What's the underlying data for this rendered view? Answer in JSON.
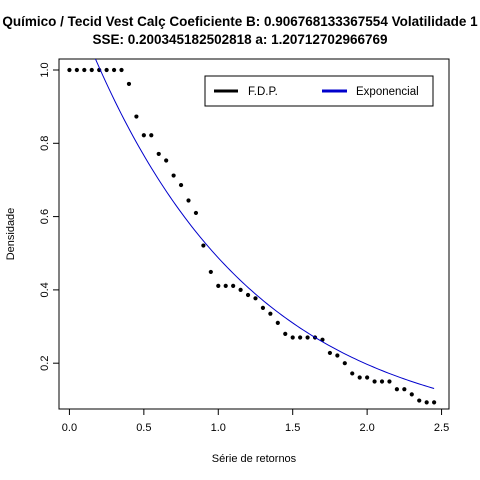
{
  "chart_data": {
    "type": "scatter",
    "title_line1": "Químico / Tecid Vest Calç Coeficiente B:  0.906768133367554 Volatilidade 1",
    "title_line2": "SSE: 0.200345182502818  a:  1.20712702966769",
    "xlabel": "Série de retornos",
    "ylabel": "Densidade",
    "xlim": [
      -0.07,
      2.55
    ],
    "ylim": [
      0.075,
      1.03
    ],
    "xticks": [
      0.0,
      0.5,
      1.0,
      1.5,
      2.0,
      2.5
    ],
    "xtick_labels": [
      "0.0",
      "0.5",
      "1.0",
      "1.5",
      "2.0",
      "2.5"
    ],
    "yticks": [
      0.2,
      0.4,
      0.6,
      0.8,
      1.0
    ],
    "ytick_labels": [
      "0.2",
      "0.4",
      "0.6",
      "0.8",
      "1.0"
    ],
    "grid": false,
    "legend_position": "top-right",
    "series": [
      {
        "name": "F.D.P.",
        "kind": "points",
        "color": "#000000",
        "x": [
          0.0,
          0.05,
          0.1,
          0.15,
          0.2,
          0.25,
          0.3,
          0.35,
          0.4,
          0.45,
          0.5,
          0.55,
          0.6,
          0.65,
          0.7,
          0.75,
          0.8,
          0.85,
          0.9,
          0.95,
          1.0,
          1.05,
          1.1,
          1.15,
          1.2,
          1.25,
          1.3,
          1.35,
          1.4,
          1.45,
          1.5,
          1.55,
          1.6,
          1.65,
          1.7,
          1.75,
          1.8,
          1.85,
          1.9,
          1.95,
          2.0,
          2.05,
          2.1,
          2.15,
          2.2,
          2.25,
          2.3,
          2.35,
          2.4,
          2.45
        ],
        "y": [
          1.0,
          1.0,
          1.0,
          1.0,
          1.0,
          1.0,
          1.0,
          1.0,
          0.962,
          0.873,
          0.822,
          0.822,
          0.771,
          0.753,
          0.712,
          0.686,
          0.644,
          0.61,
          0.521,
          0.449,
          0.411,
          0.411,
          0.411,
          0.4,
          0.386,
          0.377,
          0.351,
          0.335,
          0.31,
          0.28,
          0.27,
          0.27,
          0.27,
          0.27,
          0.264,
          0.228,
          0.221,
          0.2,
          0.172,
          0.161,
          0.161,
          0.15,
          0.15,
          0.15,
          0.129,
          0.129,
          0.115,
          0.098,
          0.093,
          0.093
        ]
      },
      {
        "name": "Exponencial",
        "kind": "line",
        "color": "#0000cc",
        "a": 1.20712702966769,
        "b": 0.906768133367554,
        "x_range": [
          0.0,
          2.45
        ]
      }
    ]
  }
}
